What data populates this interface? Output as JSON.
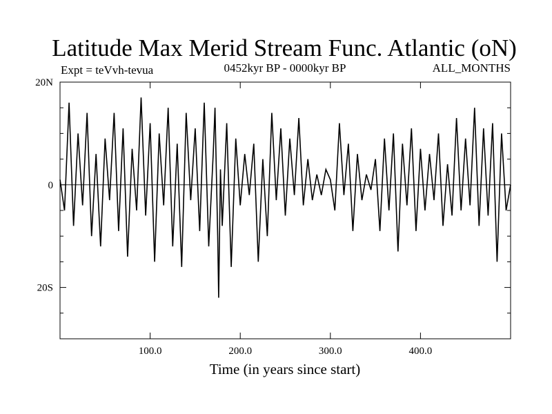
{
  "chart_data": {
    "type": "line",
    "title": "Latitude Max Merid Stream Func. Atlantic (oN)",
    "subtitle_left": "Expt = teVvh-tevua",
    "subtitle_center": "0452kyr BP - 0000kyr BP",
    "subtitle_right": "ALL_MONTHS",
    "xlabel": "Time (in years since start)",
    "ylabel": "",
    "xlim": [
      0,
      500
    ],
    "ylim": [
      -30,
      20
    ],
    "x_ticks": [
      {
        "value": 100,
        "label": "100.0"
      },
      {
        "value": 200,
        "label": "200.0"
      },
      {
        "value": 300,
        "label": "300.0"
      },
      {
        "value": 400,
        "label": "400.0"
      }
    ],
    "y_ticks": [
      {
        "value": 20,
        "label": "20N"
      },
      {
        "value": 0,
        "label": "0"
      },
      {
        "value": -20,
        "label": "20S"
      }
    ],
    "grid": false,
    "series": [
      {
        "color": "#000000",
        "x": [
          0,
          5,
          10,
          15,
          20,
          25,
          30,
          35,
          40,
          45,
          50,
          55,
          60,
          65,
          70,
          75,
          80,
          85,
          90,
          95,
          100,
          105,
          110,
          115,
          120,
          125,
          130,
          135,
          140,
          145,
          150,
          155,
          160,
          165,
          170,
          172,
          175,
          176,
          178,
          180,
          185,
          190,
          195,
          200,
          205,
          210,
          215,
          220,
          225,
          230,
          235,
          240,
          245,
          250,
          255,
          260,
          265,
          270,
          275,
          280,
          285,
          290,
          295,
          300,
          305,
          310,
          315,
          320,
          325,
          330,
          335,
          340,
          345,
          350,
          355,
          360,
          365,
          370,
          375,
          380,
          385,
          390,
          395,
          400,
          405,
          410,
          415,
          420,
          425,
          430,
          435,
          440,
          445,
          450,
          455,
          460,
          465,
          470,
          475,
          480,
          485,
          490,
          495,
          500
        ],
        "y": [
          1,
          -5,
          16,
          -8,
          10,
          -4,
          14,
          -10,
          6,
          -12,
          9,
          -3,
          14,
          -9,
          11,
          -14,
          7,
          -5,
          17,
          -6,
          12,
          -15,
          10,
          -4,
          15,
          -12,
          8,
          -16,
          14,
          -3,
          11,
          -9,
          16,
          -12,
          6,
          15,
          -10,
          -22,
          3,
          -8,
          12,
          -16,
          9,
          -4,
          6,
          -2,
          8,
          -15,
          5,
          -10,
          14,
          -3,
          11,
          -6,
          9,
          -2,
          13,
          -4,
          5,
          -3,
          2,
          -2,
          3,
          1,
          -5,
          12,
          -2,
          8,
          -9,
          6,
          -3,
          2,
          -1,
          5,
          -9,
          9,
          -5,
          10,
          -13,
          8,
          -4,
          11,
          -9,
          7,
          -5,
          6,
          -3,
          10,
          -8,
          4,
          -6,
          13,
          -5,
          9,
          -4,
          15,
          -8,
          11,
          -6,
          12,
          -15,
          10,
          -5,
          0
        ]
      }
    ]
  }
}
